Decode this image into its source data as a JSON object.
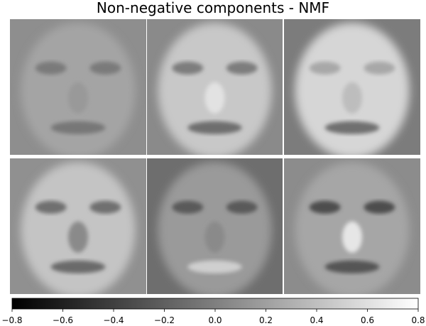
{
  "chart_data": {
    "type": "image-grid",
    "title": "Non-negative components - NMF",
    "cmap": "gray",
    "colorbar": {
      "clim": [
        -0.8,
        0.8
      ],
      "ticks": [
        {
          "value": -0.8,
          "label": "−0.8"
        },
        {
          "value": -0.6,
          "label": "−0.6"
        },
        {
          "value": -0.4,
          "label": "−0.4"
        },
        {
          "value": -0.2,
          "label": "−0.2"
        },
        {
          "value": 0,
          "label": "0.0"
        },
        {
          "value": 0.2,
          "label": "0.2"
        },
        {
          "value": 0.4,
          "label": "0.4"
        },
        {
          "value": 0.6,
          "label": "0.6"
        },
        {
          "value": 0.8,
          "label": "0.8"
        }
      ]
    }
  }
}
